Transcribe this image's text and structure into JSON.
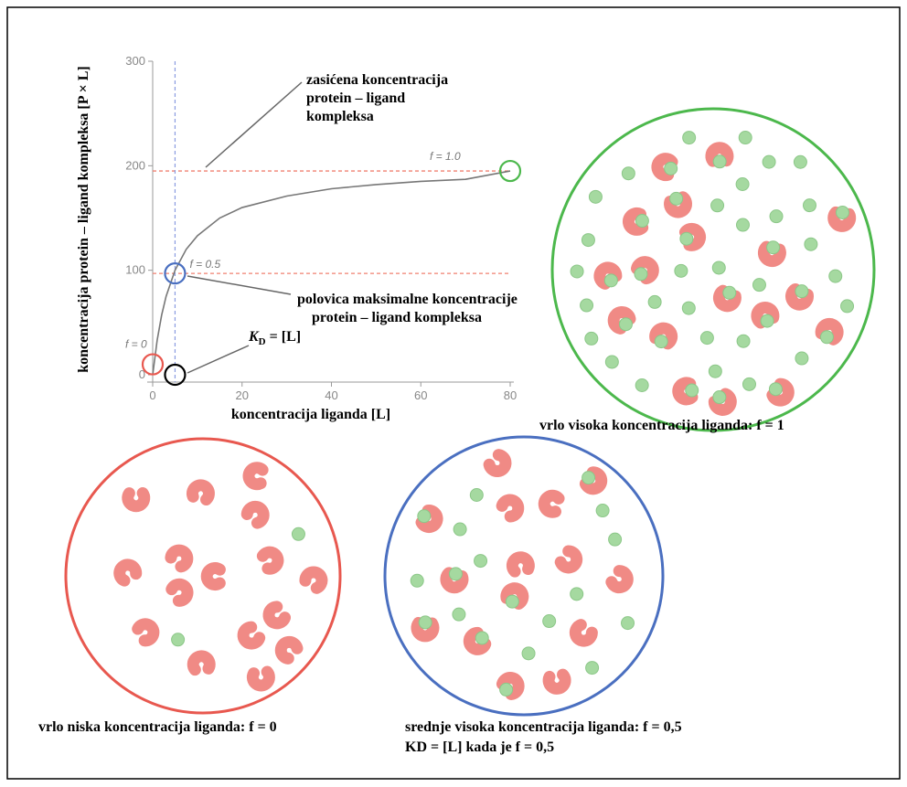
{
  "chart_data": {
    "type": "line",
    "x_label": "koncentracija liganda [L]",
    "y_label": "koncentracija protein – ligand kompleksa [P × L]",
    "x": [
      0,
      1,
      2,
      3,
      5,
      7.5,
      10,
      15,
      20,
      30,
      40,
      50,
      60,
      70,
      80
    ],
    "values": [
      0,
      33,
      57,
      75,
      100,
      120,
      133,
      150,
      160,
      171,
      178,
      182,
      185,
      187,
      195
    ],
    "color": "#777777",
    "xlim": [
      0,
      80
    ],
    "ylim": [
      0,
      300
    ],
    "xticks": [
      0,
      20,
      40,
      60,
      80
    ],
    "yticks": [
      0,
      100,
      200,
      300
    ],
    "hlines": [
      195,
      97
    ],
    "vline": 5,
    "markers": [
      {
        "x": 0,
        "y": 10,
        "color": "#e8584f"
      },
      {
        "x": 5,
        "y": 97,
        "color": "#4a6fc0"
      },
      {
        "x": 80,
        "y": 195,
        "color": "#4cb84c"
      },
      {
        "x": 5,
        "y": 0,
        "color": "#000000"
      }
    ],
    "f_labels": [
      "f = 0",
      "f = 0.5",
      "f = 1.0"
    ],
    "annotations": [
      [
        "zasićena koncentracija",
        "protein – ligand",
        "kompleksa"
      ],
      [
        "polovica maksimalne koncentracije",
        "protein – ligand kompleksa"
      ]
    ],
    "kd_label": [
      "K",
      "D",
      " = [L]"
    ]
  },
  "captions": [
    "vrlo visoka koncentracija liganda: f = 1",
    "vrlo niska koncentracija liganda: f = 0",
    "srednje visoka koncentracija liganda: f = 0,5",
    "KD = [L] kada je f = 0,5"
  ]
}
